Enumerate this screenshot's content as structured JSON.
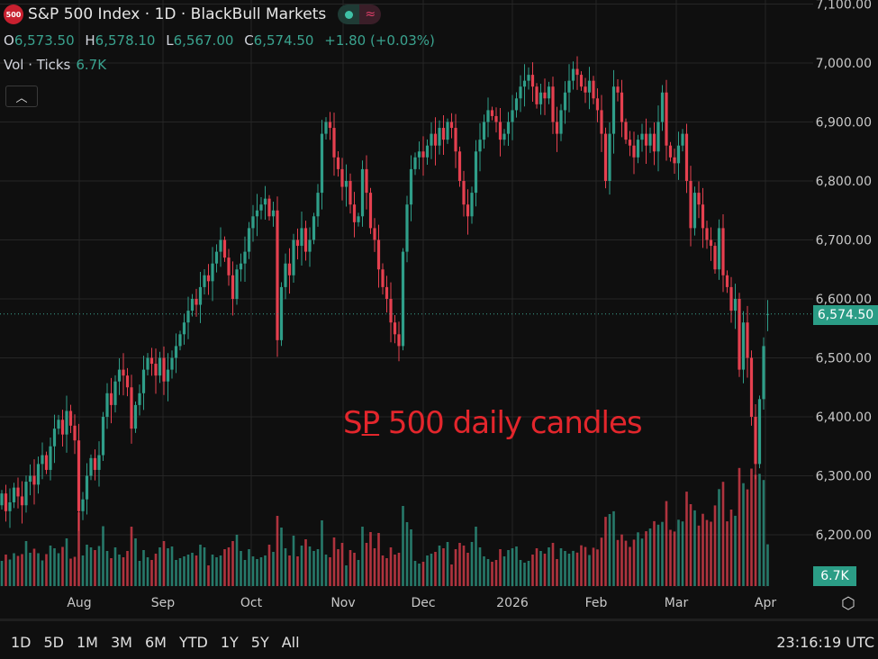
{
  "header": {
    "logo_text": "500",
    "title": "S&P 500 Index · 1D · BlackBull Markets",
    "ohlc": {
      "o_label": "O",
      "o": "6,573.50",
      "h_label": "H",
      "h": "6,578.10",
      "l_label": "L",
      "l": "6,567.00",
      "c_label": "C",
      "c": "6,574.50",
      "change": "+1.80 (+0.03%)"
    },
    "volume_label": "Vol · Ticks",
    "volume_value": "6.7K"
  },
  "annotation": {
    "part1": "S",
    "part2": "P",
    "part3": " 500 daily candles"
  },
  "price_axis": {
    "ticks": [
      "7,100.00",
      "7,000.00",
      "6,900.00",
      "6,800.00",
      "6,700.00",
      "6,600.00",
      "6,500.00",
      "6,400.00",
      "6,300.00",
      "6,200.00"
    ],
    "last_price": "6,574.50",
    "last_volume": "6.7K"
  },
  "time_axis": {
    "ticks": [
      "Aug",
      "Sep",
      "Oct",
      "Nov",
      "Dec",
      "2026",
      "Feb",
      "Mar",
      "Apr"
    ]
  },
  "bottom_bar": {
    "ranges": [
      "1D",
      "5D",
      "1M",
      "3M",
      "6M",
      "YTD",
      "1Y",
      "5Y",
      "All"
    ],
    "clock": "23:16:19 UTC"
  },
  "colors": {
    "up": "#2f9e89",
    "down": "#e5404f",
    "background": "#0f0f0f",
    "grid": "#262626",
    "annotation": "#e3262c"
  },
  "chart_data": {
    "type": "candlestick",
    "title": "S&P 500 Index · 1D · BlackBull Markets",
    "ylim": [
      6100,
      7100
    ],
    "y_ticks": [
      6200,
      6300,
      6400,
      6500,
      6600,
      6700,
      6800,
      6900,
      7000,
      7100
    ],
    "x_ticks": [
      "Aug",
      "Sep",
      "Oct",
      "Nov",
      "Dec",
      "2026",
      "Feb",
      "Mar",
      "Apr"
    ],
    "grid": true,
    "last": {
      "open": 6573.5,
      "high": 6578.1,
      "low": 6567.0,
      "close": 6574.5
    },
    "closes": [
      6270,
      6240,
      6255,
      6280,
      6265,
      6250,
      6290,
      6300,
      6285,
      6320,
      6335,
      6310,
      6350,
      6380,
      6395,
      6370,
      6410,
      6385,
      6360,
      6240,
      6260,
      6300,
      6330,
      6310,
      6335,
      6400,
      6440,
      6420,
      6460,
      6480,
      6470,
      6450,
      6380,
      6420,
      6440,
      6480,
      6500,
      6490,
      6470,
      6500,
      6460,
      6480,
      6500,
      6520,
      6540,
      6560,
      6580,
      6600,
      6590,
      6620,
      6640,
      6630,
      6660,
      6680,
      6700,
      6670,
      6640,
      6600,
      6650,
      6660,
      6680,
      6720,
      6740,
      6750,
      6760,
      6770,
      6740,
      6750,
      6530,
      6620,
      6660,
      6640,
      6700,
      6690,
      6720,
      6680,
      6700,
      6740,
      6780,
      6880,
      6900,
      6890,
      6840,
      6820,
      6790,
      6800,
      6760,
      6730,
      6740,
      6820,
      6780,
      6720,
      6700,
      6650,
      6620,
      6600,
      6560,
      6540,
      6520,
      6680,
      6760,
      6820,
      6840,
      6850,
      6840,
      6860,
      6880,
      6860,
      6890,
      6870,
      6900,
      6890,
      6850,
      6800,
      6760,
      6740,
      6780,
      6850,
      6870,
      6900,
      6920,
      6910,
      6900,
      6870,
      6880,
      6900,
      6920,
      6940,
      6960,
      6970,
      6980,
      6960,
      6930,
      6950,
      6940,
      6960,
      6900,
      6880,
      6920,
      6950,
      6970,
      6990,
      6980,
      6960,
      6950,
      6970,
      6940,
      6920,
      6880,
      6800,
      6880,
      6960,
      6950,
      6900,
      6870,
      6860,
      6840,
      6870,
      6880,
      6860,
      6880,
      6850,
      6900,
      6950,
      6860,
      6840,
      6830,
      6860,
      6880,
      6800,
      6720,
      6780,
      6760,
      6720,
      6700,
      6690,
      6650,
      6720,
      6640,
      6620,
      6580,
      6600,
      6480,
      6560,
      6500,
      6400,
      6320,
      6430,
      6520,
      6574.5
    ]
  }
}
